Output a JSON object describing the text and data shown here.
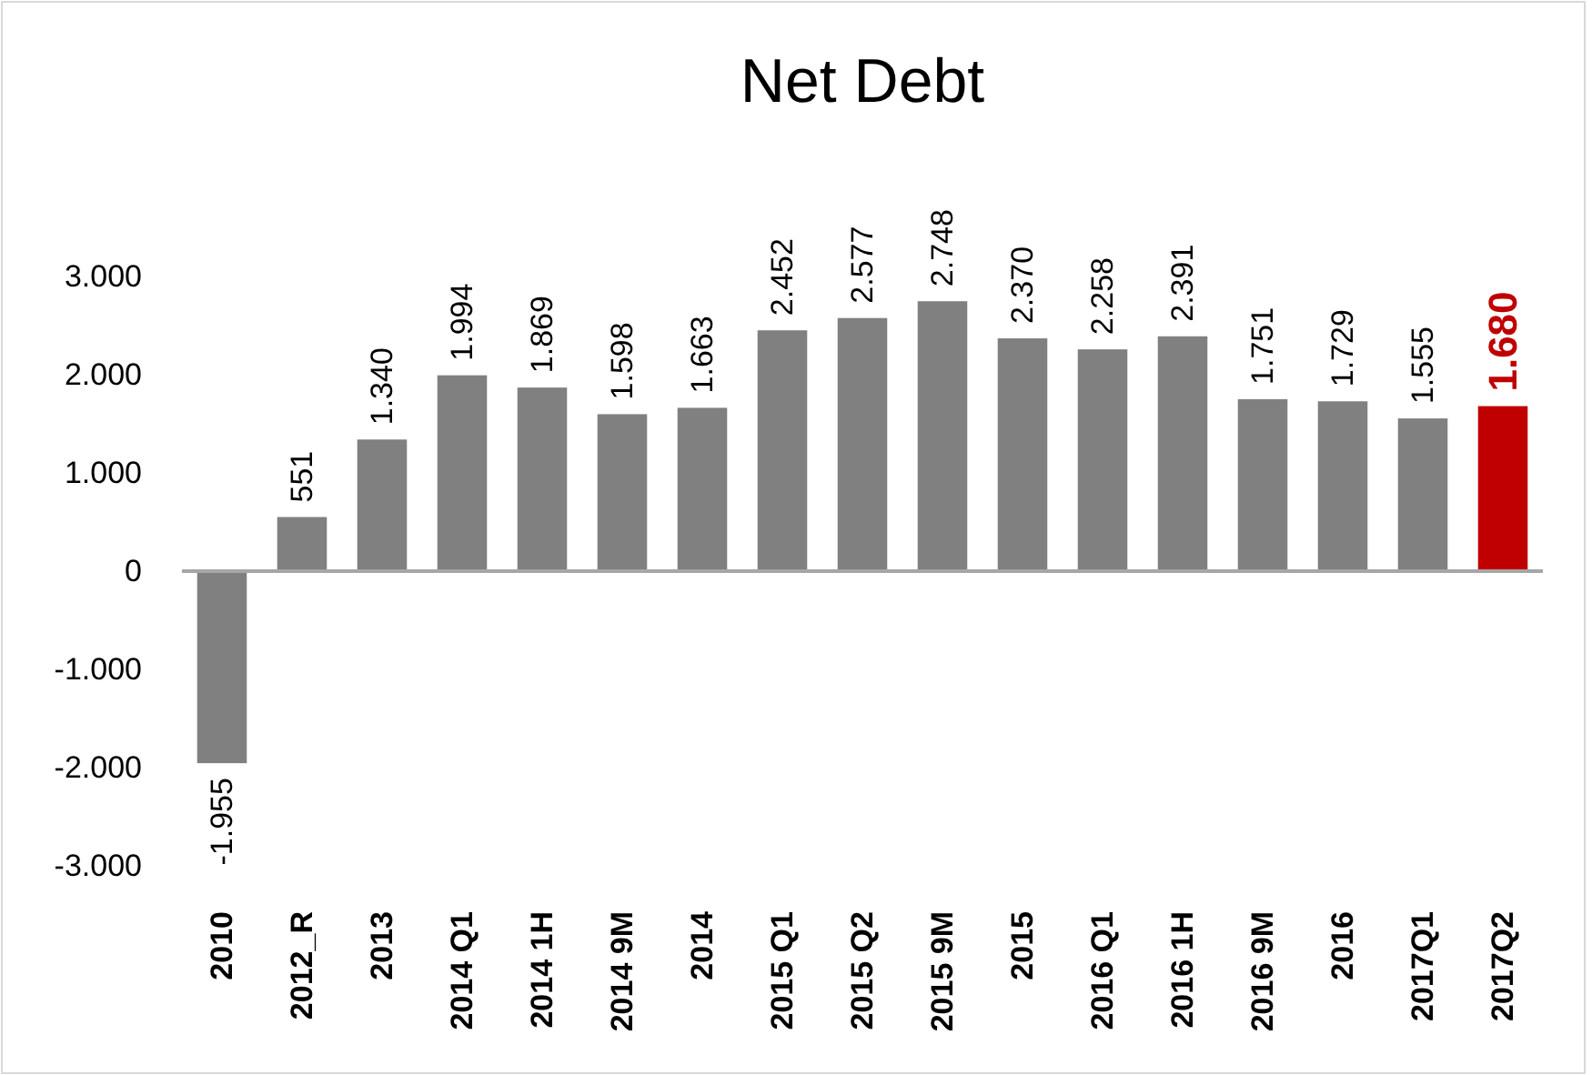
{
  "chart_data": {
    "type": "bar",
    "title": "Net Debt",
    "categories": [
      "2010",
      "2012_R",
      "2013",
      "2014 Q1",
      "2014 1H",
      "2014 9M",
      "2014",
      "2015 Q1",
      "2015 Q2",
      "2015 9M",
      "2015",
      "2016 Q1",
      "2016 1H",
      "2016 9M",
      "2016",
      "2017Q1",
      "2017Q2"
    ],
    "values": [
      -1955,
      551,
      1340,
      1994,
      1869,
      1598,
      1663,
      2452,
      2577,
      2748,
      2370,
      2258,
      2391,
      1751,
      1729,
      1555,
      1680
    ],
    "value_labels": [
      "-1.955",
      "551",
      "1.340",
      "1.994",
      "1.869",
      "1.598",
      "1.663",
      "2.452",
      "2.577",
      "2.748",
      "2.370",
      "2.258",
      "2.391",
      "1.751",
      "1.729",
      "1.555",
      "1.680"
    ],
    "colors": [
      "#808080",
      "#808080",
      "#808080",
      "#808080",
      "#808080",
      "#808080",
      "#808080",
      "#808080",
      "#808080",
      "#808080",
      "#808080",
      "#808080",
      "#808080",
      "#808080",
      "#808080",
      "#808080",
      "#c00000"
    ],
    "ylim": [
      -3000,
      3000
    ],
    "yticks": [
      {
        "value": -3000,
        "label": "-3.000"
      },
      {
        "value": -2000,
        "label": "-2.000"
      },
      {
        "value": -1000,
        "label": "-1.000"
      },
      {
        "value": 0,
        "label": "0"
      },
      {
        "value": 1000,
        "label": "1.000"
      },
      {
        "value": 2000,
        "label": "2.000"
      },
      {
        "value": 3000,
        "label": "3.000"
      }
    ]
  }
}
